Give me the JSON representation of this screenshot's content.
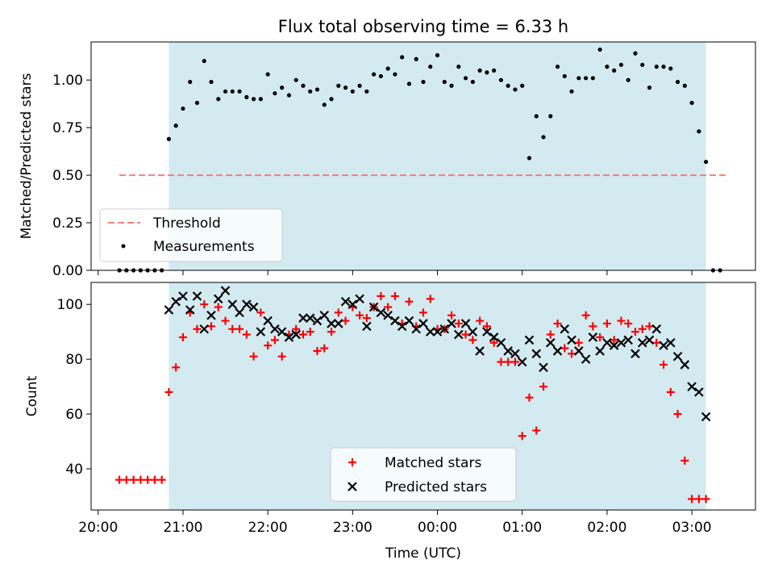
{
  "title": "Flux total observing time = 6.33 h",
  "xlabel": "Time (UTC)",
  "x_ticks": [
    "20:00",
    "21:00",
    "22:00",
    "23:00",
    "00:00",
    "01:00",
    "02:00",
    "03:00"
  ],
  "colors": {
    "observing_window": "#d3eaf1",
    "threshold": "#f08080",
    "measurements": "#000000",
    "matched": "#ff0000",
    "predicted": "#000000"
  },
  "chart_data": [
    {
      "type": "scatter",
      "ylabel": "Matched/Predicted stars",
      "xlim": [
        "19:55",
        "03:45"
      ],
      "ylim": [
        0,
        1.2
      ],
      "y_ticks": [
        "0.00",
        "0.25",
        "0.50",
        "0.75",
        "1.00"
      ],
      "observing_window": [
        "20:50",
        "03:10"
      ],
      "legend_position": "lower-left",
      "threshold": {
        "name": "Threshold",
        "value": 0.5,
        "x_range": [
          "20:15",
          "03:25"
        ]
      },
      "series": [
        {
          "name": "Measurements",
          "x": [
            "20:15",
            "20:20",
            "20:25",
            "20:30",
            "20:35",
            "20:40",
            "20:45",
            "20:50",
            "20:55",
            "21:00",
            "21:05",
            "21:10",
            "21:15",
            "21:20",
            "21:25",
            "21:30",
            "21:35",
            "21:40",
            "21:45",
            "21:50",
            "21:55",
            "22:00",
            "22:05",
            "22:10",
            "22:15",
            "22:20",
            "22:25",
            "22:30",
            "22:35",
            "22:40",
            "22:45",
            "22:50",
            "22:55",
            "23:00",
            "23:05",
            "23:10",
            "23:15",
            "23:20",
            "23:25",
            "23:30",
            "23:35",
            "23:40",
            "23:45",
            "23:50",
            "23:55",
            "00:00",
            "00:05",
            "00:10",
            "00:15",
            "00:20",
            "00:25",
            "00:30",
            "00:35",
            "00:40",
            "00:45",
            "00:50",
            "00:55",
            "01:00",
            "01:05",
            "01:10",
            "01:15",
            "01:20",
            "01:25",
            "01:30",
            "01:35",
            "01:40",
            "01:45",
            "01:50",
            "01:55",
            "02:00",
            "02:05",
            "02:10",
            "02:15",
            "02:20",
            "02:25",
            "02:30",
            "02:35",
            "02:40",
            "02:45",
            "02:50",
            "02:55",
            "03:00",
            "03:05",
            "03:10",
            "03:15",
            "03:20"
          ],
          "y": [
            0,
            0,
            0,
            0,
            0,
            0,
            0,
            0.69,
            0.76,
            0.85,
            0.99,
            0.88,
            1.1,
            0.99,
            0.9,
            0.94,
            0.94,
            0.94,
            0.91,
            0.9,
            0.9,
            1.03,
            0.93,
            0.96,
            0.92,
            1.0,
            0.97,
            0.94,
            0.95,
            0.87,
            0.9,
            0.97,
            0.96,
            0.94,
            0.97,
            0.94,
            1.03,
            1.02,
            1.06,
            1.03,
            1.12,
            0.98,
            1.11,
            0.99,
            1.07,
            1.13,
            0.99,
            0.97,
            1.07,
            1.01,
            0.99,
            1.05,
            1.04,
            1.05,
            1.0,
            0.97,
            0.95,
            0.97,
            0.59,
            0.81,
            0.7,
            0.81,
            1.07,
            1.02,
            0.94,
            1.01,
            1.01,
            1.01,
            1.16,
            1.07,
            1.05,
            1.08,
            1.0,
            1.14,
            1.08,
            0.96,
            1.07,
            1.07,
            1.06,
            0.99,
            0.97,
            0.88,
            0.73,
            0.57,
            0,
            0
          ]
        }
      ]
    },
    {
      "type": "scatter",
      "ylabel": "Count",
      "xlim": [
        "19:55",
        "03:45"
      ],
      "ylim": [
        25,
        108
      ],
      "y_ticks": [
        "40",
        "60",
        "80",
        "100"
      ],
      "observing_window": [
        "20:50",
        "03:10"
      ],
      "legend_position": "lower-center",
      "series": [
        {
          "name": "Matched stars",
          "marker": "+",
          "x": [
            "20:15",
            "20:20",
            "20:25",
            "20:30",
            "20:35",
            "20:40",
            "20:45",
            "20:50",
            "20:55",
            "21:00",
            "21:05",
            "21:10",
            "21:15",
            "21:20",
            "21:25",
            "21:30",
            "21:35",
            "21:40",
            "21:45",
            "21:50",
            "21:55",
            "22:00",
            "22:05",
            "22:10",
            "22:15",
            "22:20",
            "22:25",
            "22:30",
            "22:35",
            "22:40",
            "22:45",
            "22:50",
            "22:55",
            "23:00",
            "23:05",
            "23:10",
            "23:15",
            "23:20",
            "23:25",
            "23:30",
            "23:35",
            "23:40",
            "23:45",
            "23:50",
            "23:55",
            "00:00",
            "00:05",
            "00:10",
            "00:15",
            "00:20",
            "00:25",
            "00:30",
            "00:35",
            "00:40",
            "00:45",
            "00:50",
            "00:55",
            "01:00",
            "01:05",
            "01:10",
            "01:15",
            "01:20",
            "01:25",
            "01:30",
            "01:35",
            "01:40",
            "01:45",
            "01:50",
            "01:55",
            "02:00",
            "02:05",
            "02:10",
            "02:15",
            "02:20",
            "02:25",
            "02:30",
            "02:35",
            "02:40",
            "02:45",
            "02:50",
            "02:55",
            "03:00",
            "03:05",
            "03:10",
            "03:15",
            "03:20",
            "03:25"
          ],
          "y": [
            36,
            36,
            36,
            36,
            36,
            36,
            36,
            68,
            77,
            88,
            97,
            91,
            100,
            92,
            99,
            94,
            91,
            91,
            89,
            81,
            97,
            85,
            87,
            81,
            89,
            91,
            89,
            90,
            83,
            84,
            90,
            97,
            94,
            99,
            96,
            95,
            99,
            103,
            99,
            103,
            93,
            101,
            92,
            97,
            102,
            91,
            91,
            96,
            93,
            89,
            87,
            94,
            92,
            86,
            79,
            79,
            79,
            52,
            66,
            54,
            70,
            89,
            93,
            84,
            82,
            86,
            96,
            92,
            88,
            93,
            87,
            94,
            93,
            90,
            91,
            92,
            86,
            78,
            68,
            60,
            43,
            29,
            29,
            29,
            null,
            null,
            null
          ]
        },
        {
          "name": "Predicted stars",
          "marker": "x",
          "x": [
            "20:50",
            "20:55",
            "21:00",
            "21:05",
            "21:10",
            "21:15",
            "21:20",
            "21:25",
            "21:30",
            "21:35",
            "21:40",
            "21:45",
            "21:50",
            "21:55",
            "22:00",
            "22:05",
            "22:10",
            "22:15",
            "22:20",
            "22:25",
            "22:30",
            "22:35",
            "22:40",
            "22:45",
            "22:50",
            "22:55",
            "23:00",
            "23:05",
            "23:10",
            "23:15",
            "23:20",
            "23:25",
            "23:30",
            "23:35",
            "23:40",
            "23:45",
            "23:50",
            "23:55",
            "00:00",
            "00:05",
            "00:10",
            "00:15",
            "00:20",
            "00:25",
            "00:30",
            "00:35",
            "00:40",
            "00:45",
            "00:50",
            "00:55",
            "01:00",
            "01:05",
            "01:10",
            "01:15",
            "01:20",
            "01:25",
            "01:30",
            "01:35",
            "01:40",
            "01:45",
            "01:50",
            "01:55",
            "02:00",
            "02:05",
            "02:10",
            "02:15",
            "02:20",
            "02:25",
            "02:30",
            "02:35",
            "02:40",
            "02:45",
            "02:50",
            "02:55",
            "03:00",
            "03:05",
            "03:10"
          ],
          "y": [
            98,
            101,
            103,
            98,
            103,
            91,
            96,
            102,
            105,
            100,
            97,
            100,
            99,
            90,
            94,
            91,
            90,
            88,
            89,
            95,
            95,
            94,
            96,
            93,
            93,
            101,
            100,
            102,
            92,
            99,
            97,
            96,
            94,
            92,
            94,
            91,
            93,
            90,
            90,
            91,
            93,
            89,
            93,
            90,
            83,
            90,
            88,
            86,
            83,
            82,
            79,
            87,
            82,
            77,
            86,
            83,
            91,
            87,
            83,
            80,
            88,
            83,
            86,
            85,
            86,
            87,
            82,
            86,
            87,
            91,
            85,
            86,
            81,
            78,
            70,
            68,
            59
          ]
        }
      ]
    }
  ]
}
